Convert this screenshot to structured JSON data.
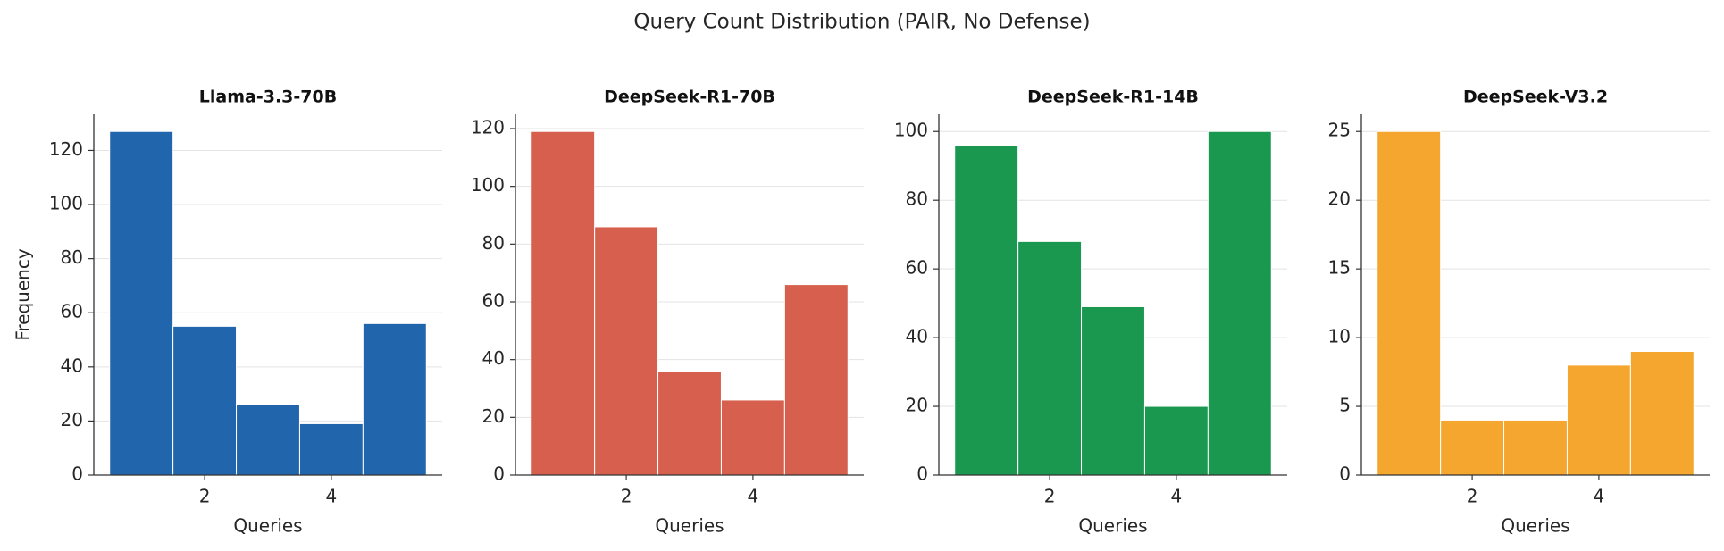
{
  "title": "Query Count Distribution (PAIR, No Defense)",
  "chart_data": [
    {
      "type": "histogram",
      "title": "Llama-3.3-70B",
      "xlabel": "Queries",
      "ylabel": "Frequency",
      "bins": [
        0.5,
        1.5,
        2.5,
        3.5,
        4.5,
        5.5
      ],
      "values": [
        127,
        55,
        26,
        19,
        56
      ],
      "color": "#2166ac",
      "xlim": [
        0.25,
        5.75
      ],
      "xticks": [
        2,
        4
      ],
      "ylim": [
        0,
        133.35
      ],
      "yticks": [
        0,
        20,
        40,
        60,
        80,
        100,
        120
      ],
      "grid": true
    },
    {
      "type": "histogram",
      "title": "DeepSeek-R1-70B",
      "xlabel": "Queries",
      "bins": [
        0.5,
        1.5,
        2.5,
        3.5,
        4.5,
        5.5
      ],
      "values": [
        119,
        86,
        36,
        26,
        66
      ],
      "color": "#d6604d",
      "xlim": [
        0.25,
        5.75
      ],
      "xticks": [
        2,
        4
      ],
      "ylim": [
        0,
        124.95
      ],
      "yticks": [
        0,
        20,
        40,
        60,
        80,
        100,
        120
      ],
      "grid": true
    },
    {
      "type": "histogram",
      "title": "DeepSeek-R1-14B",
      "xlabel": "Queries",
      "bins": [
        0.5,
        1.5,
        2.5,
        3.5,
        4.5,
        5.5
      ],
      "values": [
        96,
        68,
        49,
        20,
        100
      ],
      "color": "#1a9850",
      "xlim": [
        0.25,
        5.75
      ],
      "xticks": [
        2,
        4
      ],
      "ylim": [
        0,
        105
      ],
      "yticks": [
        0,
        20,
        40,
        60,
        80,
        100
      ],
      "grid": true
    },
    {
      "type": "histogram",
      "title": "DeepSeek-V3.2",
      "xlabel": "Queries",
      "bins": [
        0.5,
        1.5,
        2.5,
        3.5,
        4.5,
        5.5
      ],
      "values": [
        25,
        4,
        4,
        8,
        9
      ],
      "color": "#f4a62f",
      "xlim": [
        0.25,
        5.75
      ],
      "xticks": [
        2,
        4
      ],
      "ylim": [
        0,
        26.25
      ],
      "yticks": [
        0,
        5,
        10,
        15,
        20,
        25
      ],
      "grid": true
    }
  ]
}
